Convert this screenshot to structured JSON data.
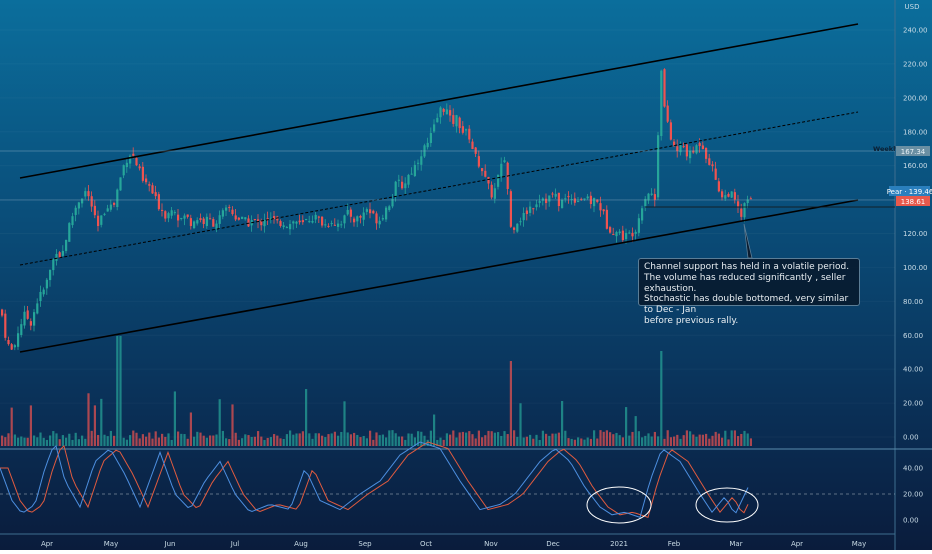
{
  "chart_data": {
    "type": "candlestick",
    "currency": "USD",
    "y_ticks": [
      "240.00",
      "220.00",
      "200.00",
      "180.00",
      "160.00",
      "140.00",
      "120.00",
      "100.00",
      "80.00",
      "60.00",
      "40.00",
      "20.00",
      "0.00"
    ],
    "x_ticks": [
      "Apr",
      "May",
      "Jun",
      "Jul",
      "Aug",
      "Sep",
      "Oct",
      "Nov",
      "Dec",
      "2021",
      "Feb",
      "Mar",
      "Apr",
      "May"
    ],
    "ylim": [
      0,
      250
    ],
    "price_labels": {
      "weekly_name": "Weekly S|R",
      "weekly_value": "167.34",
      "ticker_value": "Pear · 139.46",
      "last_value": "138.61"
    },
    "stochastic_ticks": [
      "40.00",
      "20.00",
      "0.00"
    ],
    "annotation": {
      "lines": [
        "Channel support has held in a volatile period.",
        "The volume has reduced significantly , seller exhaustion.",
        "Stochastic has double bottomed, very similar to Dec - Jan",
        "before previous rally."
      ]
    },
    "colors": {
      "up": "#26a69a",
      "down": "#ef5350",
      "k_line": "#4d8fe0",
      "d_line": "#e15b3f",
      "channel": "#000000"
    }
  }
}
